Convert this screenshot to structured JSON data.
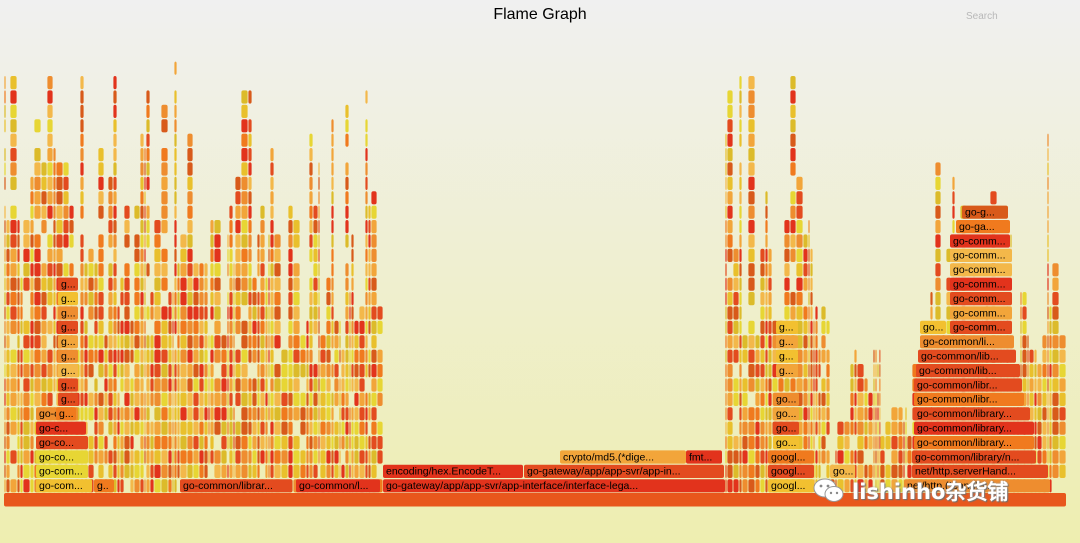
{
  "header": {
    "title": "Flame Graph",
    "search_label": "Search"
  },
  "watermark": {
    "text": "lishinho杂货铺",
    "icon": "wechat-icon"
  },
  "colors": {
    "palette": [
      "#e34b1f",
      "#f07a1e",
      "#f2a53a",
      "#e9c02c",
      "#e7d634",
      "#d85a1a",
      "#ee8d2f",
      "#e2331c",
      "#f3b84a",
      "#dcbb2a"
    ],
    "bg_top": "#f0f0f0",
    "bg_bottom": "#eeeeb0"
  },
  "frames": {
    "level_1": [
      {
        "label": "go-com..."
      },
      {
        "label": "g.."
      },
      {
        "label": "go-common/librar..."
      },
      {
        "label": "go-common/l..."
      },
      {
        "label": "go-gateway/app/app-svr/app-interface/interface-lega..."
      },
      {
        "label": "googl..."
      },
      {
        "label": "net/http.(*conn).s..."
      }
    ],
    "level_2": [
      {
        "label": "go-com..."
      },
      {
        "label": "encoding/hex.EncodeT..."
      },
      {
        "label": "go-gateway/app/app-svr/app-in..."
      },
      {
        "label": "googl..."
      },
      {
        "label": "go..."
      },
      {
        "label": "net/http.serverHand..."
      }
    ],
    "level_3": [
      {
        "label": "go-co..."
      },
      {
        "label": "crypto/md5.(*dige..."
      },
      {
        "label": "fmt..."
      },
      {
        "label": "googl..."
      },
      {
        "label": "go-common/library/n..."
      }
    ],
    "level_4": [
      {
        "label": "go-co..."
      },
      {
        "label": "go..."
      },
      {
        "label": "go-common/library..."
      }
    ],
    "level_5": [
      {
        "label": "go-c..."
      },
      {
        "label": "go..."
      },
      {
        "label": "go-common/library..."
      }
    ],
    "level_6": [
      {
        "label": "go-c..."
      },
      {
        "label": "g..."
      },
      {
        "label": "go..."
      },
      {
        "label": "go-common/library..."
      }
    ],
    "level_7": [
      {
        "label": "g..."
      },
      {
        "label": "go..."
      },
      {
        "label": "go-common/libr..."
      }
    ],
    "level_8": [
      {
        "label": "g..."
      },
      {
        "label": "go-common/libr..."
      }
    ],
    "level_9": [
      {
        "label": "g..."
      },
      {
        "label": "g..."
      },
      {
        "label": "go-common/lib..."
      }
    ],
    "level_10": [
      {
        "label": "g..."
      },
      {
        "label": "g..."
      },
      {
        "label": "go-common/lib..."
      }
    ],
    "level_11": [
      {
        "label": "g..."
      },
      {
        "label": "g..."
      },
      {
        "label": "go-common/li..."
      }
    ],
    "level_12": [
      {
        "label": "g..."
      },
      {
        "label": "g..."
      },
      {
        "label": "go..."
      },
      {
        "label": "go-comm..."
      }
    ],
    "level_13": [
      {
        "label": "g..."
      },
      {
        "label": "go-comm..."
      }
    ],
    "level_14": [
      {
        "label": "g..."
      },
      {
        "label": "go-comm..."
      }
    ],
    "level_15": [
      {
        "label": "g..."
      },
      {
        "label": "go-comm..."
      }
    ],
    "level_16": [
      {
        "label": "go-comm..."
      }
    ],
    "level_17": [
      {
        "label": "go-comm..."
      }
    ],
    "level_18": [
      {
        "label": "go-comm..."
      }
    ],
    "level_19": [
      {
        "label": "go-ga..."
      }
    ],
    "level_20": [
      {
        "label": "go-g..."
      }
    ]
  }
}
